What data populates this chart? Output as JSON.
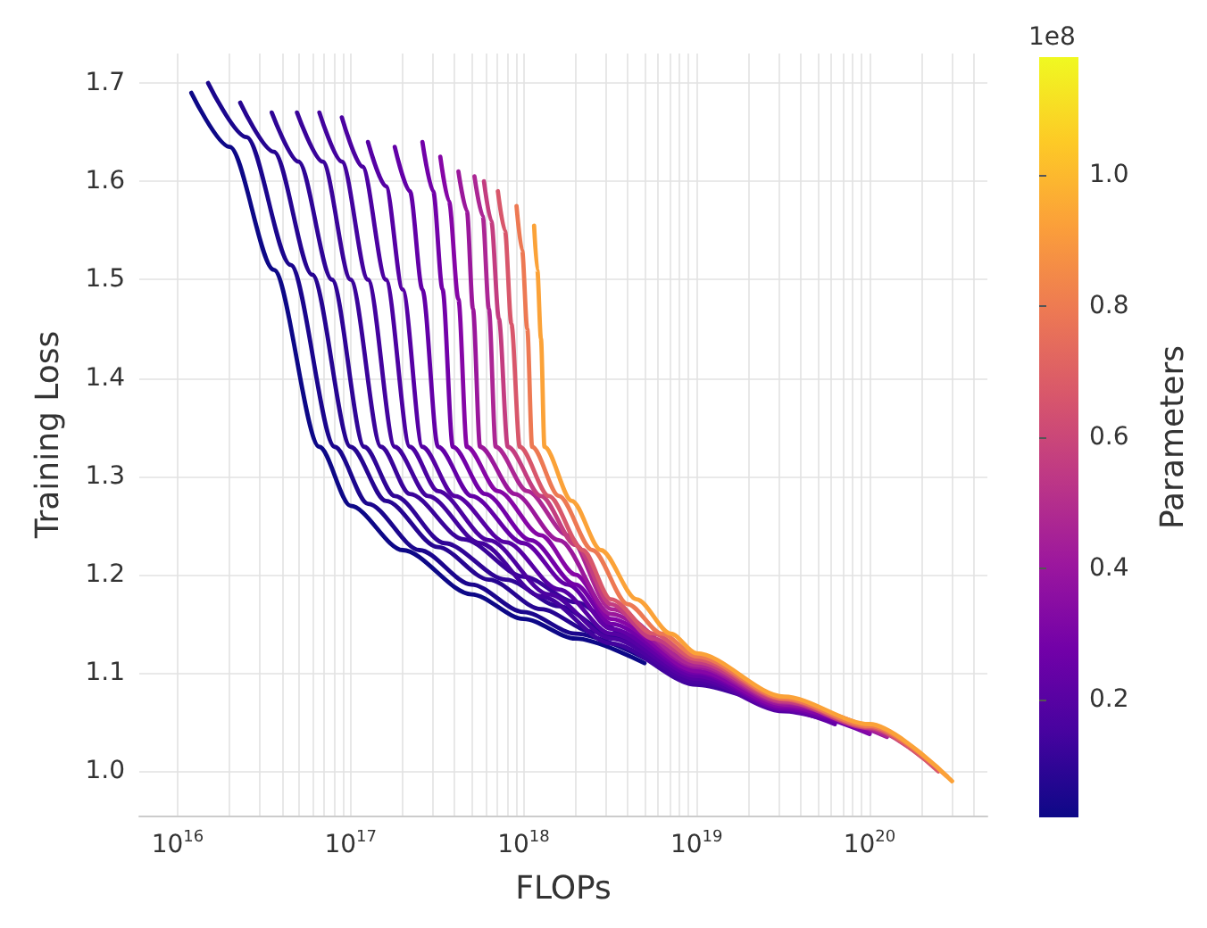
{
  "chart_data": {
    "type": "line",
    "xlabel": "FLOPs",
    "ylabel": "Training Loss",
    "clabel": "Parameters",
    "log": "x",
    "grid": true,
    "xlim": [
      6000000000000000.0,
      4.8e+20
    ],
    "xticks": [
      {
        "value": 1e+16,
        "label": "10$^{16}$"
      },
      {
        "value": 2e+16,
        "label": null
      },
      {
        "value": 3e+16,
        "label": null
      },
      {
        "value": 4e+16,
        "label": null
      },
      {
        "value": 5e+16,
        "label": null
      },
      {
        "value": 6e+16,
        "label": null
      },
      {
        "value": 7e+16,
        "label": null
      },
      {
        "value": 8e+16,
        "label": null
      },
      {
        "value": 9e+16,
        "label": null
      },
      {
        "value": 1e+17,
        "label": "10$^{17}$"
      },
      {
        "value": 2e+17,
        "label": null
      },
      {
        "value": 3e+17,
        "label": null
      },
      {
        "value": 4e+17,
        "label": null
      },
      {
        "value": 5e+17,
        "label": null
      },
      {
        "value": 6e+17,
        "label": null
      },
      {
        "value": 7e+17,
        "label": null
      },
      {
        "value": 8e+17,
        "label": null
      },
      {
        "value": 9e+17,
        "label": null
      },
      {
        "value": 1e+18,
        "label": "10$^{18}$"
      },
      {
        "value": 2e+18,
        "label": null
      },
      {
        "value": 3e+18,
        "label": null
      },
      {
        "value": 4e+18,
        "label": null
      },
      {
        "value": 5e+18,
        "label": null
      },
      {
        "value": 6e+18,
        "label": null
      },
      {
        "value": 7e+18,
        "label": null
      },
      {
        "value": 8e+18,
        "label": null
      },
      {
        "value": 9e+18,
        "label": null
      },
      {
        "value": 1e+19,
        "label": "10$^{19}$"
      },
      {
        "value": 2e+19,
        "label": null
      },
      {
        "value": 3e+19,
        "label": null
      },
      {
        "value": 4e+19,
        "label": null
      },
      {
        "value": 5e+19,
        "label": null
      },
      {
        "value": 6e+19,
        "label": null
      },
      {
        "value": 7e+19,
        "label": null
      },
      {
        "value": 8e+19,
        "label": null
      },
      {
        "value": 9e+19,
        "label": null
      },
      {
        "value": 1e+20,
        "label": "10$^{20}$"
      },
      {
        "value": 2e+20,
        "label": null
      },
      {
        "value": 3e+20,
        "label": null
      },
      {
        "value": 4e+20,
        "label": null
      }
    ],
    "ylim": [
      0.955,
      1.73
    ],
    "yticks": [
      {
        "value": 1,
        "label": "1.0"
      },
      {
        "value": 1.1,
        "label": "1.1"
      },
      {
        "value": 1.2,
        "label": "1.2"
      },
      {
        "value": 1.3,
        "label": "1.3"
      },
      {
        "value": 1.4,
        "label": "1.4"
      },
      {
        "value": 1.5,
        "label": "1.5"
      },
      {
        "value": 1.6,
        "label": "1.6"
      },
      {
        "value": 1.7,
        "label": "1.7"
      }
    ],
    "clim": [
      0.02,
      1.18
    ],
    "cticks": [
      0.2,
      0.4,
      0.6,
      0.8,
      {
        "value": 1,
        "label": "1.0"
      }
    ],
    "annotations": [
      "1e8"
    ],
    "series": [
      {
        "color": "#0d0887",
        "x": [
          1.2e+16,
          2e+16,
          3.6e+16,
          6.6e+16,
          1e+17,
          2e+17,
          5e+17,
          1e+18,
          2e+18,
          5e+18
        ],
        "values": [
          1.69,
          1.635,
          1.51,
          1.33,
          1.27,
          1.225,
          1.18,
          1.155,
          1.135,
          1.11
        ]
      },
      {
        "color": "#1b068d",
        "x": [
          1.5e+16,
          2.5e+16,
          4.5e+16,
          8.1e+16,
          1.26e+17,
          2.5e+17,
          5e+17,
          1e+18,
          2e+18,
          5e+18
        ],
        "values": [
          1.7,
          1.645,
          1.515,
          1.33,
          1.272,
          1.225,
          1.19,
          1.162,
          1.14,
          1.115
        ]
      },
      {
        "color": "#260591",
        "x": [
          2.3e+16,
          3.6e+16,
          6e+16,
          1e+17,
          1.6e+17,
          3.2e+17,
          6.3e+17,
          1.26e+18,
          2.5e+18,
          6.3e+18
        ],
        "values": [
          1.68,
          1.63,
          1.505,
          1.33,
          1.275,
          1.228,
          1.195,
          1.165,
          1.142,
          1.115
        ]
      },
      {
        "color": "#2f0596",
        "x": [
          3.5e+16,
          5e+16,
          7.8e+16,
          1.2e+17,
          1.8e+17,
          3.5e+17,
          7.9e+17,
          1.6e+18,
          3.2e+18,
          1e+19
        ],
        "values": [
          1.67,
          1.62,
          1.5,
          1.33,
          1.28,
          1.232,
          1.195,
          1.168,
          1.14,
          1.1
        ]
      },
      {
        "color": "#3a049a",
        "x": [
          4.9e+16,
          6.9e+16,
          1e+17,
          1.5e+17,
          2.2e+17,
          4.5e+17,
          1e+18,
          2e+18,
          4e+18,
          1e+19
        ],
        "values": [
          1.67,
          1.62,
          1.5,
          1.33,
          1.282,
          1.236,
          1.198,
          1.172,
          1.138,
          1.105
        ]
      },
      {
        "color": "#43039e",
        "x": [
          6.6e+16,
          8.9e+16,
          1.26e+17,
          1.8e+17,
          2.8e+17,
          5.6e+17,
          1.26e+18,
          3.2e+18,
          1e+19,
          2e+19
        ],
        "values": [
          1.67,
          1.62,
          1.5,
          1.33,
          1.28,
          1.232,
          1.178,
          1.13,
          1.088,
          1.075
        ]
      },
      {
        "color": "#4c02a1",
        "x": [
          8.9e+16,
          1.17e+17,
          1.6e+17,
          2.2e+17,
          3.2e+17,
          6.3e+17,
          1.4e+18,
          3.2e+18,
          1e+19,
          2e+19
        ],
        "values": [
          1.665,
          1.615,
          1.5,
          1.33,
          1.285,
          1.235,
          1.18,
          1.135,
          1.091,
          1.077
        ]
      },
      {
        "color": "#5601a4",
        "x": [
          1.26e+17,
          1.6e+17,
          2e+17,
          2.6e+17,
          4e+17,
          7.9e+17,
          1.6e+18,
          3.2e+18,
          1e+19,
          3.2e+19,
          6.3e+19
        ],
        "values": [
          1.64,
          1.595,
          1.49,
          1.33,
          1.28,
          1.233,
          1.185,
          1.14,
          1.094,
          1.061,
          1.05
        ]
      },
      {
        "color": "#6300a7",
        "x": [
          1.8e+17,
          2.2e+17,
          2.6e+17,
          3.2e+17,
          5e+17,
          1e+18,
          1.8e+18,
          3.2e+18,
          1e+19,
          3.2e+19,
          6.3e+19
        ],
        "values": [
          1.635,
          1.59,
          1.49,
          1.33,
          1.28,
          1.232,
          1.19,
          1.145,
          1.097,
          1.063,
          1.048
        ]
      },
      {
        "color": "#7201a8",
        "x": [
          2.6e+17,
          3e+17,
          3.4e+17,
          3.9e+17,
          6e+17,
          1.1e+18,
          2e+18,
          3.2e+18,
          1e+19,
          3.2e+19,
          1e+20
        ],
        "values": [
          1.64,
          1.59,
          1.49,
          1.33,
          1.282,
          1.235,
          1.19,
          1.15,
          1.1,
          1.064,
          1.038
        ]
      },
      {
        "color": "#8606a6",
        "x": [
          3.3e+17,
          3.7e+17,
          4.2e+17,
          4.7e+17,
          7.1e+17,
          1.26e+18,
          2e+18,
          3.2e+18,
          1e+19,
          3.2e+19,
          1e+20
        ],
        "values": [
          1.625,
          1.58,
          1.48,
          1.33,
          1.285,
          1.24,
          1.2,
          1.155,
          1.102,
          1.066,
          1.039
        ]
      },
      {
        "color": "#9a179b",
        "x": [
          4.2e+17,
          4.7e+17,
          5.1e+17,
          5.6e+17,
          8.9e+17,
          1.6e+18,
          3.2e+18,
          1e+19,
          3.2e+19,
          1.26e+20
        ],
        "values": [
          1.61,
          1.57,
          1.47,
          1.33,
          1.282,
          1.235,
          1.16,
          1.106,
          1.068,
          1.035
        ]
      },
      {
        "color": "#ac2694",
        "x": [
          5.2e+17,
          5.8e+17,
          6.3e+17,
          6.9e+17,
          1.05e+18,
          1.8e+18,
          3.2e+18,
          1e+19,
          3.2e+19,
          1.26e+20
        ],
        "values": [
          1.605,
          1.565,
          1.47,
          1.33,
          1.285,
          1.24,
          1.165,
          1.108,
          1.07,
          1.036
        ]
      },
      {
        "color": "#c33d80",
        "x": [
          5.9e+17,
          6.5e+17,
          7.2e+17,
          8.1e+17,
          1.26e+18,
          2e+18,
          3.2e+18,
          5.6e+18,
          1e+19,
          3.2e+19,
          1e+20,
          2e+20
        ],
        "values": [
          1.6,
          1.56,
          1.46,
          1.33,
          1.28,
          1.23,
          1.17,
          1.135,
          1.111,
          1.071,
          1.044,
          1.015
        ]
      },
      {
        "color": "#d8576b",
        "x": [
          7.1e+17,
          7.8e+17,
          8.5e+17,
          9.5e+17,
          1.4e+18,
          2.2e+18,
          3.2e+18,
          5.6e+18,
          1e+19,
          3.2e+19,
          1e+20,
          2.5e+20
        ],
        "values": [
          1.59,
          1.55,
          1.455,
          1.33,
          1.28,
          1.225,
          1.175,
          1.14,
          1.114,
          1.073,
          1.045,
          1.0
        ]
      },
      {
        "color": "#ed7953",
        "x": [
          9.1e+17,
          9.8e+17,
          1.05e+18,
          1.12e+18,
          1.6e+18,
          2.5e+18,
          4e+18,
          6.3e+18,
          1e+19,
          3.2e+19,
          1e+20,
          2.8e+20
        ],
        "values": [
          1.575,
          1.53,
          1.45,
          1.33,
          1.28,
          1.225,
          1.17,
          1.14,
          1.117,
          1.074,
          1.046,
          0.995
        ]
      },
      {
        "color": "#fba238",
        "x": [
          1.15e+18,
          1.2e+18,
          1.26e+18,
          1.32e+18,
          1.9e+18,
          2.8e+18,
          4.5e+18,
          7.1e+18,
          1e+19,
          3.2e+19,
          1e+20,
          3e+20
        ],
        "values": [
          1.555,
          1.51,
          1.44,
          1.33,
          1.275,
          1.225,
          1.175,
          1.14,
          1.12,
          1.076,
          1.048,
          0.99
        ]
      }
    ]
  }
}
